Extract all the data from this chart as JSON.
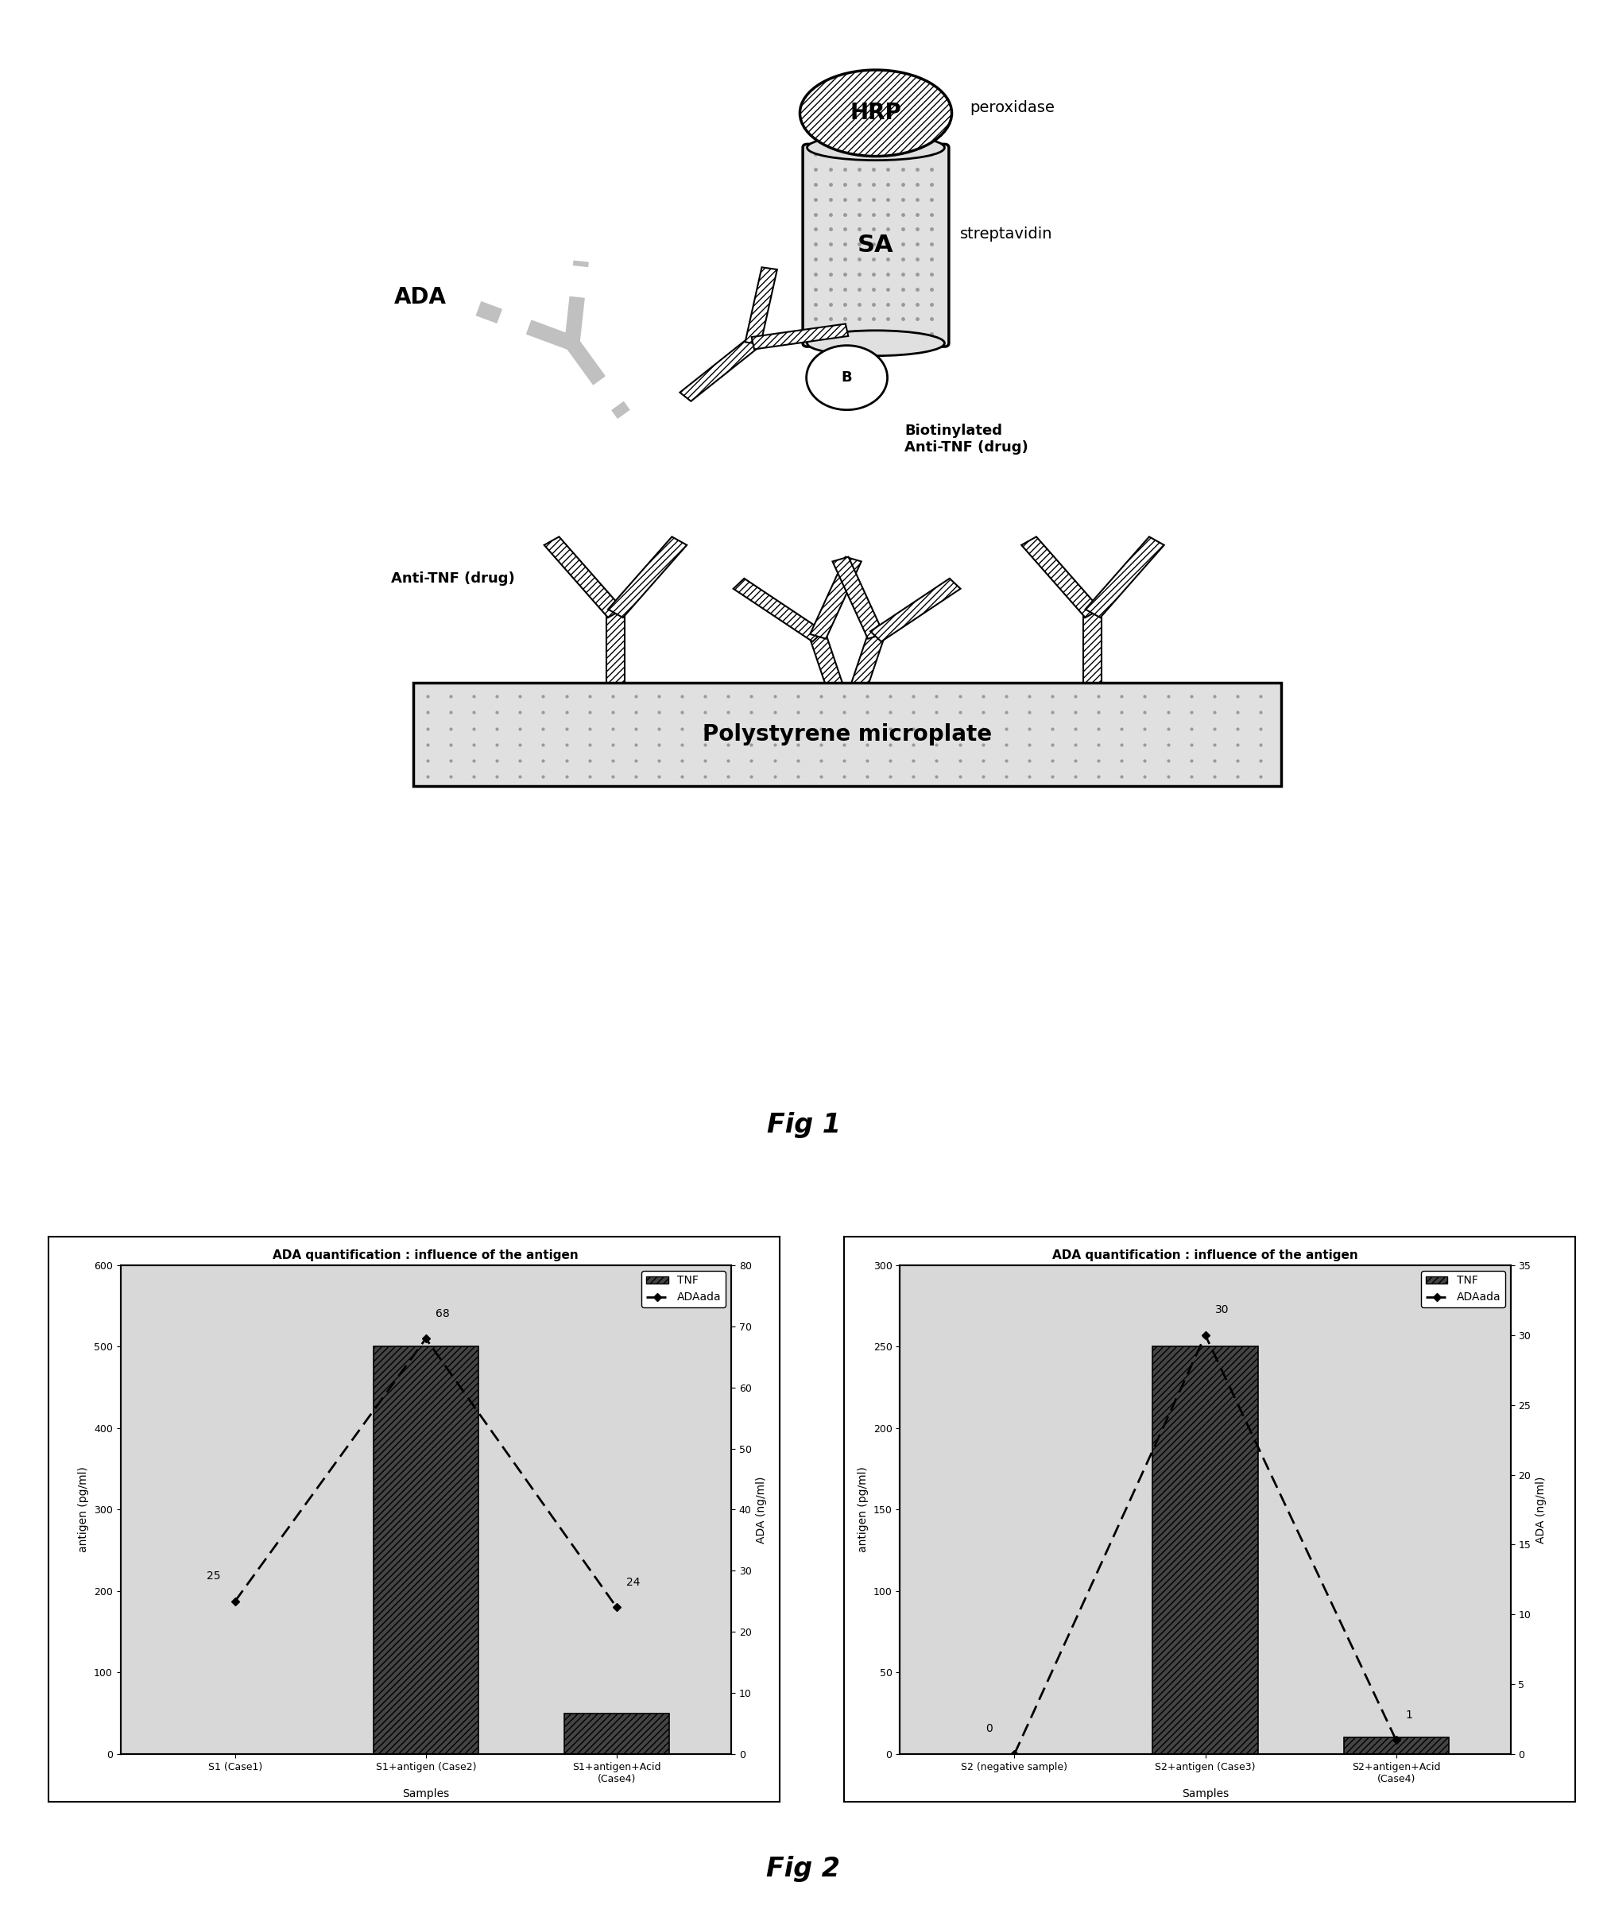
{
  "fig1_title": "Fig 1",
  "fig2_title": "Fig 2",
  "chart1": {
    "title": "ADA quantification : influence of the antigen",
    "categories": [
      "S1 (Case1)",
      "S1+antigen (Case2)",
      "S1+antigen+Acid\n(Case4)"
    ],
    "bar_values": [
      0,
      500,
      50
    ],
    "line_values": [
      25,
      68,
      24
    ],
    "ylabel_left": "antigen (pg/ml)",
    "ylabel_right": "ADA (ng/ml)",
    "xlabel": "Samples",
    "ylim_left": [
      0,
      600
    ],
    "ylim_right": [
      0,
      80
    ],
    "yticks_left": [
      0,
      100,
      200,
      300,
      400,
      500,
      600
    ],
    "yticks_right": [
      0,
      10,
      20,
      30,
      40,
      50,
      60,
      70,
      80
    ],
    "legend_TNF": "TNF",
    "legend_ADAada": "ADAada",
    "bar_color": "#444444",
    "bg_color": "#d8d8d8",
    "hatch": "////"
  },
  "chart2": {
    "title": "ADA quantification : influence of the antigen",
    "categories": [
      "S2 (negative sample)",
      "S2+antigen (Case3)",
      "S2+antigen+Acid\n(Case4)"
    ],
    "bar_values": [
      0,
      250,
      10
    ],
    "line_values": [
      0,
      30,
      1
    ],
    "ylabel_left": "antigen (pg/ml)",
    "ylabel_right": "ADA (ng/ml)",
    "xlabel": "Samples",
    "ylim_left": [
      0,
      300
    ],
    "ylim_right": [
      0,
      35
    ],
    "yticks_left": [
      0,
      50,
      100,
      150,
      200,
      250,
      300
    ],
    "yticks_right": [
      0,
      5,
      10,
      15,
      20,
      25,
      30,
      35
    ],
    "legend_TNF": "TNF",
    "legend_ADAada": "ADAada",
    "bar_color": "#444444",
    "bg_color": "#d8d8d8",
    "hatch": "////"
  }
}
